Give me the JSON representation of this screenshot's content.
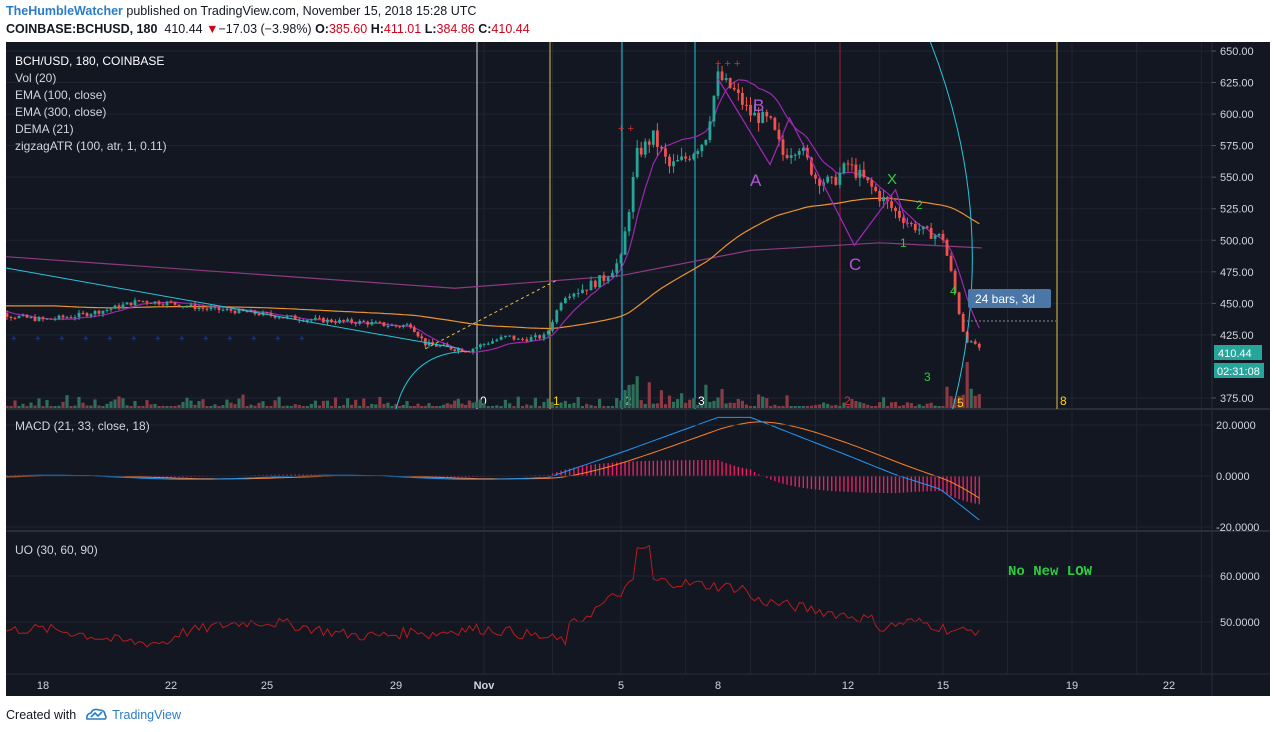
{
  "header": {
    "author": "TheHumbleWatcher",
    "published_text": "published on TradingView.com, November 15, 2018 15:28 UTC",
    "symbol": "COINBASE:BCHUSD, 180",
    "last": "410.44",
    "change_arrow": "▼",
    "change": "−17.03 (−3.98%)",
    "open_label": "O:",
    "open": "385.60",
    "high_label": "H:",
    "high": "411.01",
    "low_label": "L:",
    "low": "384.86",
    "close_label": "C:",
    "close": "410.44"
  },
  "legend": {
    "title": "BCH/USD, 180, COINBASE",
    "items": [
      "Vol (20)",
      "EMA (100, close)",
      "EMA (300, close)",
      "DEMA (21)",
      "zigzagATR (100, atr, 1, 0.11)"
    ],
    "macd": "MACD (21, 33, close, 18)",
    "uo": "UO (30, 60, 90)"
  },
  "annotations": {
    "wave_A": "A",
    "wave_B": "B",
    "wave_C": "C",
    "wave_X": "X",
    "wave_1": "1",
    "wave_2": "2",
    "wave_3": "3",
    "wave_4": "4",
    "wave_5": "5",
    "bars_box": "24 bars, 3d",
    "no_new_low": "No New LOW",
    "plus_marks": "+ +",
    "plus_marks_top": "+ + +",
    "fib_labels": [
      "0",
      "1",
      "2",
      "3",
      "5",
      "8"
    ],
    "last_price_tag": "410.44",
    "countdown_tag": "02:31:08"
  },
  "footer": {
    "created_with": "Created with",
    "brand": "TradingView"
  },
  "colors": {
    "background": "#131722",
    "up": "#26a69a",
    "down": "#ef5350",
    "ema100": "#e8932f",
    "ema300": "#8e3a80",
    "dema": "#9c27b0",
    "macd": "#2196f3",
    "signal": "#ff7f27",
    "hist": "#e91e63",
    "uo": "#b71c1c",
    "teal_lines": "#26c6da",
    "yellow_lines": "#e1c14b",
    "red_lines": "#a02030"
  },
  "chart_data": [
    {
      "type": "candlestick",
      "title": "BCH/USD, 180, COINBASE",
      "x_ticks": [
        "18",
        "22",
        "25",
        "29",
        "Nov",
        "5",
        "8",
        "12",
        "15",
        "19",
        "22"
      ],
      "y_ticks": [
        "650.00",
        "625.00",
        "600.00",
        "575.00",
        "550.00",
        "525.00",
        "500.00",
        "475.00",
        "450.00",
        "425.00",
        "375.00"
      ],
      "ylim": [
        368,
        655
      ],
      "series_close_approx": [
        {
          "date": "Oct 16",
          "close": 448
        },
        {
          "date": "Oct 18",
          "close": 437
        },
        {
          "date": "Oct 21",
          "close": 452
        },
        {
          "date": "Oct 24",
          "close": 443
        },
        {
          "date": "Oct 27",
          "close": 436
        },
        {
          "date": "Oct 29",
          "close": 432
        },
        {
          "date": "Oct 30",
          "close": 415
        },
        {
          "date": "Oct 31",
          "close": 412
        },
        {
          "date": "Nov 1",
          "close": 421
        },
        {
          "date": "Nov 2",
          "close": 425
        },
        {
          "date": "Nov 3",
          "close": 460
        },
        {
          "date": "Nov 4",
          "close": 480
        },
        {
          "date": "Nov 5",
          "close": 565
        },
        {
          "date": "Nov 6",
          "close": 575
        },
        {
          "date": "Nov 7",
          "close": 625
        },
        {
          "date": "Nov 8",
          "close": 600
        },
        {
          "date": "Nov 9",
          "close": 570
        },
        {
          "date": "Nov 10",
          "close": 550
        },
        {
          "date": "Nov 11",
          "close": 545
        },
        {
          "date": "Nov 12",
          "close": 520
        },
        {
          "date": "Nov 13",
          "close": 510
        },
        {
          "date": "Nov 14",
          "close": 430
        },
        {
          "date": "Nov 15",
          "close": 410.44
        }
      ]
    },
    {
      "type": "line",
      "title": "MACD (21, 33, close, 18)",
      "y_ticks": [
        "20.0000",
        "0.0000",
        "-20.0000"
      ],
      "ylim": [
        -21,
        24
      ]
    },
    {
      "type": "line",
      "title": "UO (30, 60, 90)",
      "y_ticks": [
        "60.0000",
        "50.0000"
      ],
      "ylim": [
        40,
        68
      ]
    }
  ]
}
